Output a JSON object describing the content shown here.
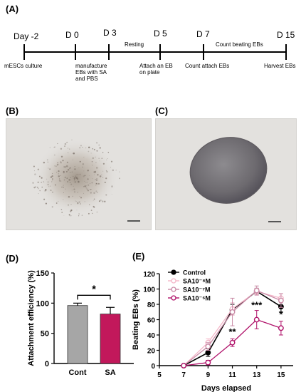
{
  "panels": {
    "a": "(A)",
    "b": "(B)",
    "c": "(C)",
    "d": "(D)",
    "e": "(E)"
  },
  "timeline": {
    "days": [
      "Day -2",
      "D 0",
      "D 3",
      "D 5",
      "D 7",
      "D 15"
    ],
    "below": {
      "mesc": "mESCs culture",
      "manufacture_1": "manufacture",
      "manufacture_2": "EBs with SA",
      "manufacture_3": "and PBS",
      "attach_1": "Attach an EB",
      "attach_2": "on plate",
      "count_attach": "Count attach EBs",
      "harvest": "Harvest EBs"
    },
    "above": {
      "resting": "Resting",
      "count_beating": "Count beating EBs"
    }
  },
  "chart_data": [
    {
      "type": "bar",
      "categories": [
        "Cont",
        "SA"
      ],
      "values": [
        96,
        82
      ],
      "errors": [
        4,
        11
      ],
      "ylabel": "Attachment efficiency (%)",
      "ylim": [
        0,
        150
      ],
      "yticks": [
        0,
        50,
        100,
        150
      ],
      "colors": [
        "#a6a6a6",
        "#c2185b"
      ],
      "significance": "*"
    },
    {
      "type": "line",
      "xlabel": "Days elapsed",
      "ylabel": "Beating EBs (%)",
      "xlim": [
        5,
        16
      ],
      "ylim": [
        0,
        120
      ],
      "xticks": [
        5,
        7,
        9,
        11,
        13,
        15
      ],
      "yticks": [
        0,
        20,
        40,
        60,
        80,
        100,
        120
      ],
      "x": [
        7,
        9,
        11,
        13,
        15
      ],
      "series": [
        {
          "name": "Control",
          "values": [
            0,
            17,
            73,
            97,
            77
          ],
          "errors": [
            0,
            5,
            7,
            4,
            7
          ],
          "color": "#000000",
          "marker": "filled"
        },
        {
          "name": "SA10⁻⁸M",
          "values": [
            0,
            30,
            74,
            97,
            88
          ],
          "errors": [
            0,
            5,
            8,
            4,
            6
          ],
          "color": "#f4b6c8",
          "marker": "open"
        },
        {
          "name": "SA10⁻⁷M",
          "values": [
            0,
            25,
            70,
            98,
            85
          ],
          "errors": [
            0,
            5,
            18,
            6,
            9
          ],
          "color": "#c98aa6",
          "marker": "open"
        },
        {
          "name": "SA10⁻⁶M",
          "values": [
            0,
            4,
            30,
            60,
            49
          ],
          "errors": [
            0,
            3,
            5,
            12,
            9
          ],
          "color": "#b0126a",
          "marker": "open"
        }
      ],
      "annotations": [
        {
          "x": 11,
          "y": 40,
          "text": "**"
        },
        {
          "x": 13,
          "y": 75,
          "text": "***"
        },
        {
          "x": 15,
          "y": 63,
          "text": "*"
        }
      ]
    }
  ]
}
